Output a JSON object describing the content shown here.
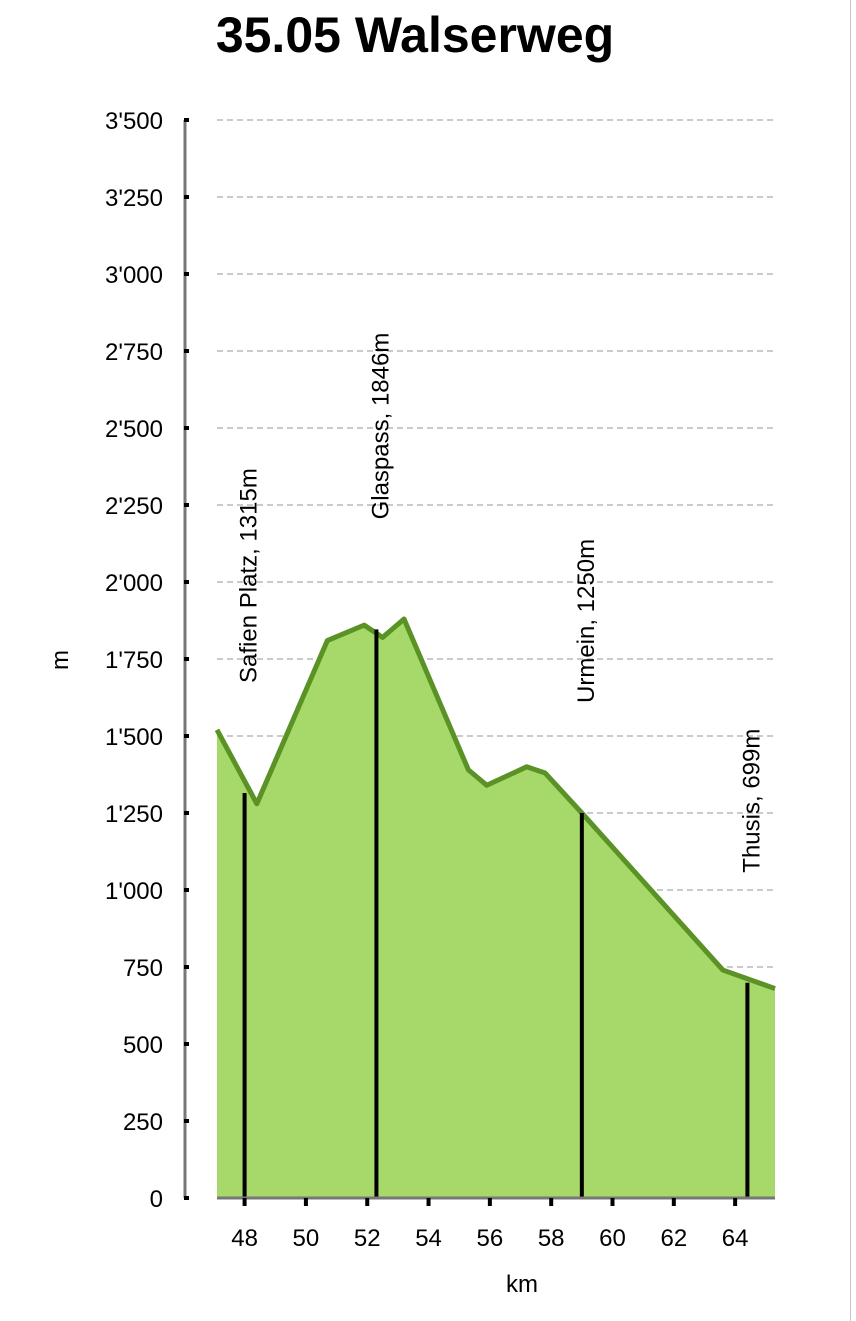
{
  "title": "35.05 Walserweg",
  "colors": {
    "area_fill": "#a6d96a",
    "line": "#5a9226",
    "grid": "#b8b8b8",
    "axis": "#777777",
    "marker": "#000000"
  },
  "chart_data": {
    "type": "area",
    "title": "35.05 Walserweg",
    "xlabel": "km",
    "ylabel": "m",
    "xlim": [
      47.1,
      65.3
    ],
    "ylim": [
      0,
      3500
    ],
    "grid": true,
    "x_ticks": [
      48,
      50,
      52,
      54,
      56,
      58,
      60,
      62,
      64
    ],
    "x_tick_labels": [
      "48",
      "50",
      "52",
      "54",
      "56",
      "58",
      "60",
      "62",
      "64"
    ],
    "y_ticks": [
      0,
      250,
      500,
      750,
      1000,
      1250,
      1500,
      1750,
      2000,
      2250,
      2500,
      2750,
      3000,
      3250,
      3500
    ],
    "y_tick_labels": [
      "0",
      "250",
      "500",
      "750",
      "1'000",
      "1'250",
      "1'500",
      "1'750",
      "2'000",
      "2'250",
      "2'500",
      "2'750",
      "3'000",
      "3'250",
      "3'500"
    ],
    "series": [
      {
        "x": [
          47.1,
          48.4,
          50.7,
          51.9,
          52.5,
          53.2,
          55.3,
          55.9,
          57.2,
          57.8,
          59.0,
          63.6,
          65.3
        ],
        "y": [
          1520,
          1280,
          1810,
          1860,
          1820,
          1880,
          1390,
          1340,
          1400,
          1380,
          1250,
          740,
          680
        ]
      }
    ],
    "annotations": [
      {
        "x": 48.0,
        "y": 1315,
        "label": "Safien Platz, 1315m"
      },
      {
        "x": 52.3,
        "y": 1846,
        "label": "Glaspass, 1846m"
      },
      {
        "x": 59.0,
        "y": 1250,
        "label": "Urmein, 1250m"
      },
      {
        "x": 64.4,
        "y": 699,
        "label": "Thusis, 699m"
      }
    ]
  }
}
